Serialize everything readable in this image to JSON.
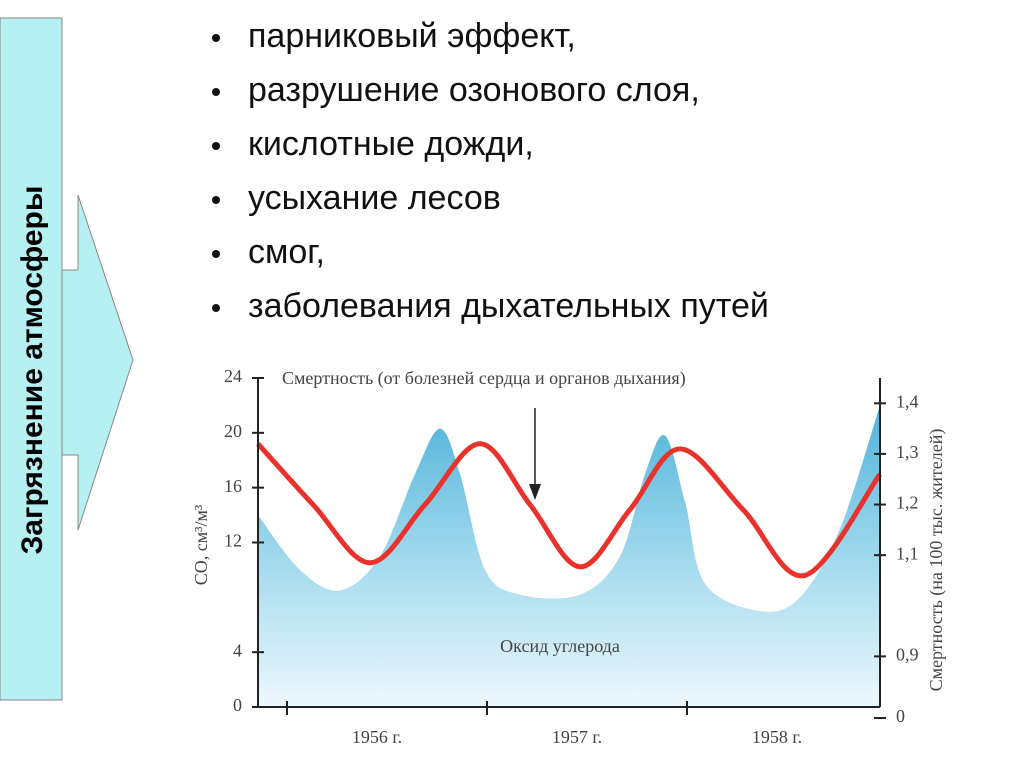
{
  "sidebar": {
    "label": "Загрязнение атмосферы"
  },
  "bullets": [
    "парниковый эффект,",
    "разрушение озонового слоя,",
    "кислотные дожди,",
    "усыхание лесов",
    "смог,",
    "заболевания дыхательных путей"
  ],
  "chart_data": {
    "type": "line",
    "ylabel": "СО, см³/м³",
    "y2label": "Смертность (на 100 тыс. жителей)",
    "xlim": [
      1955.855,
      1958.965
    ],
    "xticks": [
      {
        "value": 1956,
        "label": "1956 г."
      },
      {
        "value": 1957,
        "label": "1957 г."
      },
      {
        "value": 1958,
        "label": "1958 г."
      }
    ],
    "ylim": [
      0,
      24
    ],
    "yticks": [
      0,
      4,
      12,
      16,
      20,
      24
    ],
    "y2lim": [
      0.8,
      1.45
    ],
    "y2ticks": [
      0,
      {
        "value": 0.9,
        "label": "0,9"
      },
      {
        "value": 1.1,
        "label": "1,1"
      },
      {
        "value": 1.2,
        "label": "1,2"
      },
      {
        "value": 1.3,
        "label": "1,3"
      },
      {
        "value": 1.4,
        "label": "1,4"
      }
    ],
    "series": [
      {
        "name": "Оксид углерода",
        "color": "#5bbfe0",
        "fill": true,
        "x": [
          1955.855,
          1956.065,
          1956.265,
          1956.465,
          1956.64,
          1956.765,
          1956.865,
          1956.99,
          1957.165,
          1957.465,
          1957.665,
          1957.79,
          1957.89,
          1957.99,
          1958.09,
          1958.365,
          1958.565,
          1958.765,
          1958.965
        ],
        "values": [
          14,
          10,
          8.5,
          11,
          17,
          20.3,
          17,
          10,
          8.2,
          8.2,
          11,
          17,
          19.8,
          15,
          9,
          7,
          8,
          13,
          22
        ]
      },
      {
        "name": "Смертность (от болезней сердца и органов дыхания)",
        "color": "#e8322b",
        "axis": "y2",
        "x": [
          1955.855,
          1956.13,
          1956.415,
          1956.69,
          1956.965,
          1957.215,
          1957.465,
          1957.715,
          1957.965,
          1958.28,
          1958.59,
          1958.965
        ],
        "values": [
          1.32,
          1.2,
          1.085,
          1.2,
          1.32,
          1.2,
          1.077,
          1.19,
          1.31,
          1.19,
          1.06,
          1.26
        ]
      }
    ]
  }
}
